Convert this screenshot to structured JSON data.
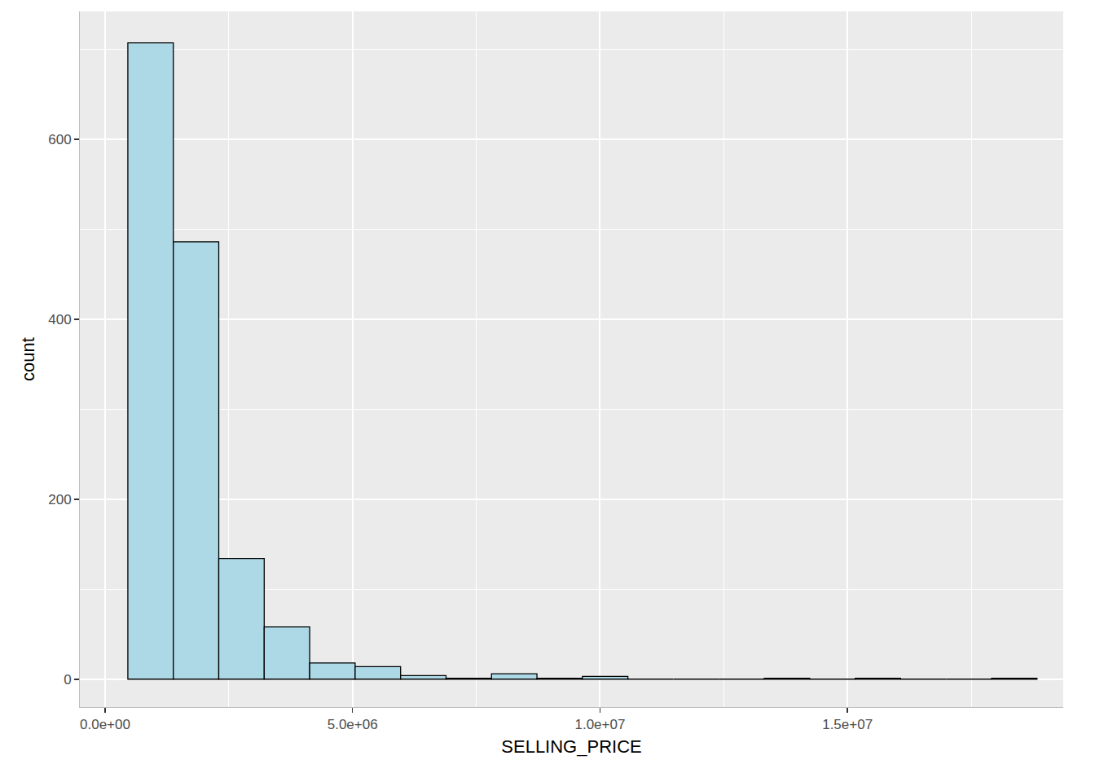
{
  "chart_data": {
    "type": "histogram",
    "x_label": "SELLING_PRICE",
    "y_label": "count",
    "bins": [
      460000,
      1378500,
      2297000,
      3215500,
      4134000,
      5052500,
      5971000,
      6889500,
      7808000,
      8726500,
      9645000,
      10563500,
      11482000,
      12400500,
      13319000,
      14237500,
      15156000,
      16074500,
      16993000,
      17911500,
      18830000
    ],
    "values": [
      707,
      486,
      134,
      58,
      18,
      14,
      4,
      1,
      6,
      1,
      3,
      0,
      0,
      0,
      1,
      0,
      1,
      0,
      0,
      1
    ],
    "color": "#add8e6",
    "xlim": [
      -510000,
      19360000
    ],
    "xticks": [
      {
        "value": 0,
        "label": "0.0e+00"
      },
      {
        "value": 5000000,
        "label": "5.0e+06"
      },
      {
        "value": 10000000,
        "label": "1.0e+07"
      },
      {
        "value": 15000000,
        "label": "1.5e+07"
      }
    ],
    "ylim": [
      -31,
      742
    ],
    "yticks": [
      0,
      200,
      400,
      600
    ],
    "grid": true
  }
}
